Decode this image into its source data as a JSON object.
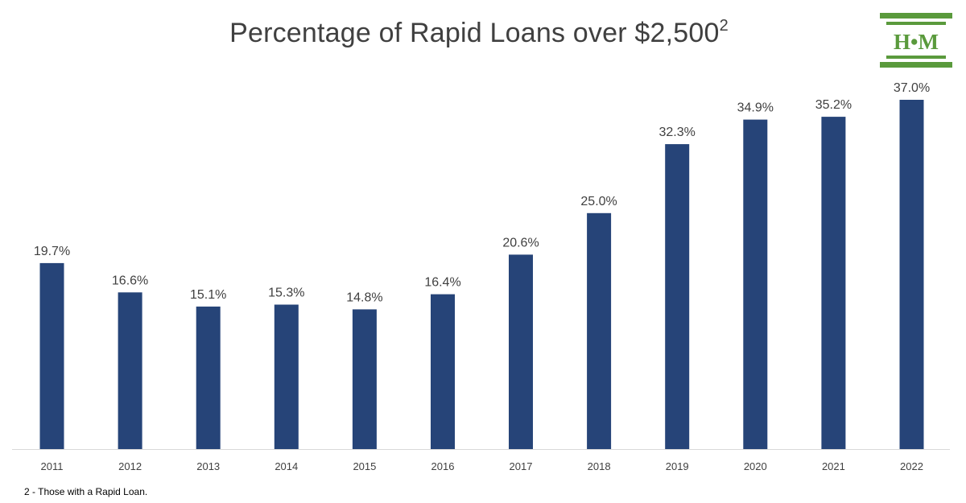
{
  "chart_data": {
    "type": "bar",
    "title": "Percentage of Rapid Loans over $2,500",
    "title_superscript": "2",
    "categories": [
      "2011",
      "2012",
      "2013",
      "2014",
      "2015",
      "2016",
      "2017",
      "2018",
      "2019",
      "2020",
      "2021",
      "2022"
    ],
    "values": [
      19.7,
      16.6,
      15.1,
      15.3,
      14.8,
      16.4,
      20.6,
      25.0,
      32.3,
      34.9,
      35.2,
      37.0
    ],
    "data_labels": [
      "19.7%",
      "16.6%",
      "15.1%",
      "15.3%",
      "14.8%",
      "16.4%",
      "20.6%",
      "25.0%",
      "32.3%",
      "34.9%",
      "35.2%",
      "37.0%"
    ],
    "ylim": [
      0,
      37.0
    ],
    "xlabel": "",
    "ylabel": "",
    "grid": false,
    "legend": "none",
    "bar_color": "#264478",
    "axis_color": "#d9d9d9"
  },
  "footnote": "2 - Those with a Rapid Loan.",
  "logo": {
    "text": "H•M",
    "color": "#5a9a3c"
  }
}
